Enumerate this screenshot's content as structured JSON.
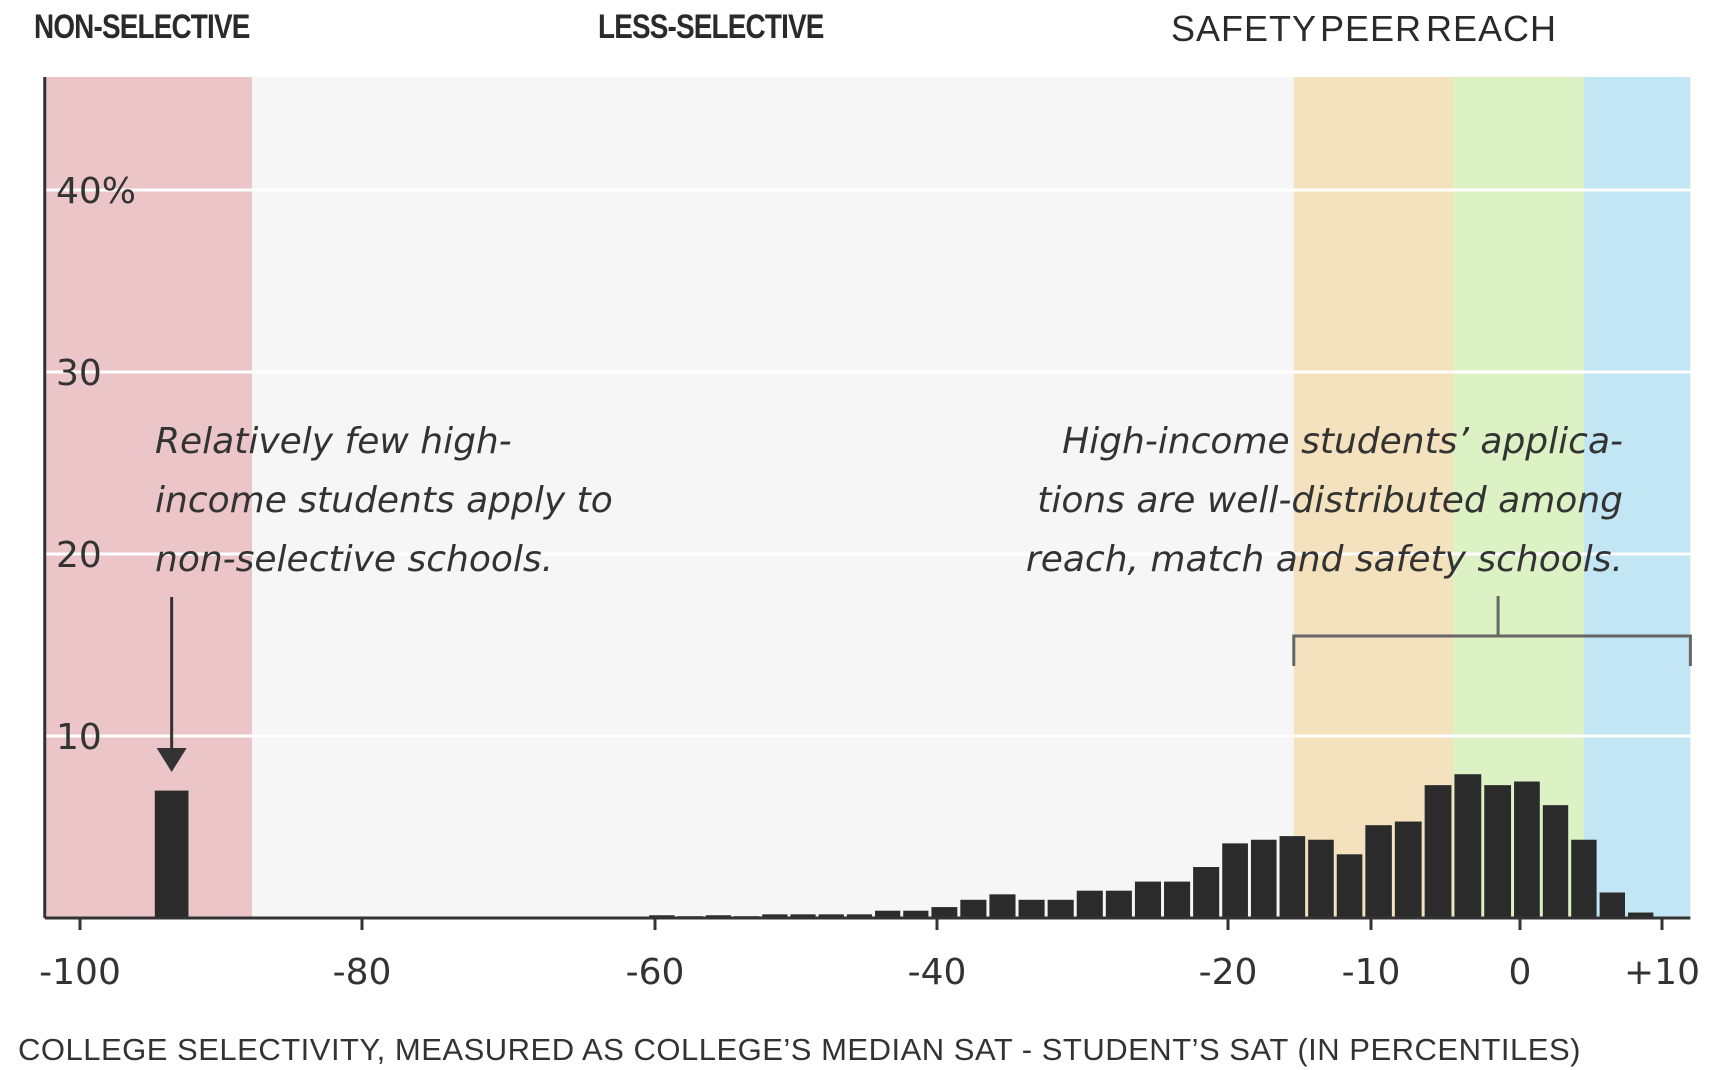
{
  "categories_top": {
    "non_selective": "NON-SELECTIVE",
    "less_selective": "LESS-SELECTIVE",
    "safety": "SAFETY",
    "peer": "PEER",
    "reach": "REACH"
  },
  "annotations": {
    "left": [
      "Relatively few high-",
      "income students apply to",
      "non-selective schools."
    ],
    "right": [
      "High-income students’ applica-",
      "tions are well-distributed among",
      "reach, match and safety schools."
    ]
  },
  "colors": {
    "non_selective": "#ebc5c7",
    "less_selective": "#f6f6f6",
    "safety": "#f3e2bd",
    "peer": "#dcf2c4",
    "reach": "#c2e6f3",
    "bar": "#2b2b2b"
  },
  "chart_data": {
    "type": "bar",
    "title": "",
    "xlabel": "COLLEGE SELECTIVITY, MEASURED AS COLLEGE’S MEDIAN SAT - STUDENT’S SAT (IN PERCENTILES)",
    "ylabel": "",
    "ylim": [
      0,
      46
    ],
    "y_ticks": [
      {
        "value": 10,
        "label": "10"
      },
      {
        "value": 20,
        "label": "20"
      },
      {
        "value": 30,
        "label": "30"
      },
      {
        "value": 40,
        "label": "40%"
      }
    ],
    "x_ticks": [
      {
        "value": -100,
        "label": "-100"
      },
      {
        "value": -80,
        "label": "-80"
      },
      {
        "value": -60,
        "label": "-60"
      },
      {
        "value": -40,
        "label": "-40"
      },
      {
        "value": -20,
        "label": "-20"
      },
      {
        "value": -10,
        "label": "-10"
      },
      {
        "value": 0,
        "label": "0"
      },
      {
        "value": 10,
        "label": "+10"
      }
    ],
    "xlim": [
      -102.5,
      12
    ],
    "regions": [
      {
        "name": "NON-SELECTIVE",
        "from": -102.5,
        "to": -87.8
      },
      {
        "name": "LESS-SELECTIVE",
        "from": -87.8,
        "to": -15.4
      },
      {
        "name": "SAFETY",
        "from": -15.4,
        "to": -4.5
      },
      {
        "name": "PEER",
        "from": -4.5,
        "to": 4.5
      },
      {
        "name": "REACH",
        "from": 4.5,
        "to": 12
      }
    ],
    "grid": true,
    "bars": [
      {
        "x": -93.5,
        "value": 7.0,
        "width": 2.6
      },
      {
        "x": -59.5,
        "value": 0.15
      },
      {
        "x": -57.5,
        "value": 0.1
      },
      {
        "x": -55.5,
        "value": 0.15
      },
      {
        "x": -53.5,
        "value": 0.1
      },
      {
        "x": -51.5,
        "value": 0.2
      },
      {
        "x": -49.5,
        "value": 0.2
      },
      {
        "x": -47.5,
        "value": 0.2
      },
      {
        "x": -45.5,
        "value": 0.2
      },
      {
        "x": -43.5,
        "value": 0.4
      },
      {
        "x": -41.5,
        "value": 0.4
      },
      {
        "x": -39.5,
        "value": 0.6
      },
      {
        "x": -37.5,
        "value": 1.0
      },
      {
        "x": -35.5,
        "value": 1.3
      },
      {
        "x": -33.5,
        "value": 1.0
      },
      {
        "x": -31.5,
        "value": 1.0
      },
      {
        "x": -29.5,
        "value": 1.5
      },
      {
        "x": -27.5,
        "value": 1.5
      },
      {
        "x": -25.5,
        "value": 2.0
      },
      {
        "x": -23.5,
        "value": 2.0
      },
      {
        "x": -21.5,
        "value": 2.8
      },
      {
        "x": -19.5,
        "value": 4.1
      },
      {
        "x": -17.5,
        "value": 4.3
      },
      {
        "x": -15.5,
        "value": 4.5
      },
      {
        "x": -13.5,
        "value": 4.3
      },
      {
        "x": -11.5,
        "value": 3.5
      },
      {
        "x": -9.5,
        "value": 5.1
      },
      {
        "x": -7.5,
        "value": 5.3
      },
      {
        "x": -5.5,
        "value": 7.3
      },
      {
        "x": -3.5,
        "value": 7.9
      },
      {
        "x": -1.5,
        "value": 7.3
      },
      {
        "x": 0.5,
        "value": 7.5
      },
      {
        "x": 2.5,
        "value": 6.2
      },
      {
        "x": 4.5,
        "value": 4.3
      },
      {
        "x": 6.5,
        "value": 1.4
      },
      {
        "x": 8.5,
        "value": 0.3
      }
    ]
  }
}
